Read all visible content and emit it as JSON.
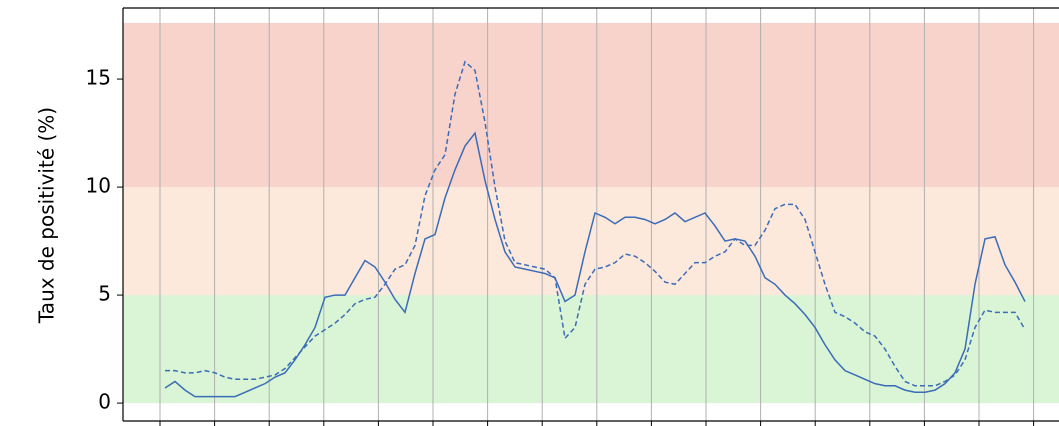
{
  "chart_data": {
    "type": "line",
    "ylabel": "Taux de positivité (%)",
    "ylim": [
      -0.83,
      18.29
    ],
    "yticks": [
      0,
      5,
      10,
      15
    ],
    "grid": true,
    "bands": [
      {
        "from": 0,
        "to": 5,
        "color": "#d9f5d5"
      },
      {
        "from": 5,
        "to": 10,
        "color": "#fde8dc"
      },
      {
        "from": 10,
        "to": 17.6,
        "color": "#f8d3cc"
      }
    ],
    "series": [
      {
        "color": "#3b6cb7",
        "style": "solid",
        "values": [
          0.7,
          1.0,
          0.6,
          0.3,
          0.3,
          0.3,
          0.3,
          0.3,
          0.5,
          0.7,
          0.9,
          1.2,
          1.4,
          2.0,
          2.7,
          3.5,
          4.9,
          5.0,
          5.0,
          5.8,
          6.6,
          6.3,
          5.6,
          4.8,
          4.2,
          6.0,
          7.6,
          7.8,
          9.5,
          10.8,
          11.9,
          12.5,
          10.3,
          8.5,
          7.0,
          6.3,
          6.2,
          6.1,
          6.0,
          5.8,
          4.7,
          5.0,
          7.0,
          8.8,
          8.6,
          8.3,
          8.6,
          8.6,
          8.5,
          8.3,
          8.5,
          8.8,
          8.4,
          8.6,
          8.8,
          8.2,
          7.5,
          7.6,
          7.5,
          6.8,
          5.8,
          5.5,
          5.0,
          4.6,
          4.1,
          3.5,
          2.7,
          2.0,
          1.5,
          1.3,
          1.1,
          0.9,
          0.8,
          0.8,
          0.6,
          0.5,
          0.5,
          0.6,
          0.9,
          1.4,
          2.5,
          5.5,
          7.6,
          7.7,
          6.4,
          5.6,
          4.7
        ]
      },
      {
        "color": "#3b6cb7",
        "style": "dashed",
        "values": [
          1.5,
          1.5,
          1.4,
          1.4,
          1.5,
          1.4,
          1.2,
          1.1,
          1.1,
          1.1,
          1.2,
          1.3,
          1.6,
          2.1,
          2.6,
          3.1,
          3.4,
          3.7,
          4.1,
          4.6,
          4.8,
          4.9,
          5.5,
          6.2,
          6.4,
          7.3,
          9.6,
          10.8,
          11.5,
          14.3,
          15.8,
          15.4,
          13.0,
          10.0,
          7.5,
          6.5,
          6.4,
          6.3,
          6.2,
          5.8,
          3.0,
          3.5,
          5.5,
          6.2,
          6.3,
          6.5,
          6.9,
          6.8,
          6.5,
          6.1,
          5.6,
          5.5,
          6.0,
          6.5,
          6.5,
          6.8,
          7.0,
          7.6,
          7.3,
          7.3,
          8.0,
          9.0,
          9.2,
          9.2,
          8.5,
          7.0,
          5.5,
          4.2,
          4.0,
          3.7,
          3.3,
          3.1,
          2.5,
          1.7,
          1.0,
          0.8,
          0.8,
          0.8,
          1.0,
          1.3,
          2.0,
          3.5,
          4.3,
          4.2,
          4.2,
          4.2,
          3.4
        ]
      }
    ]
  }
}
